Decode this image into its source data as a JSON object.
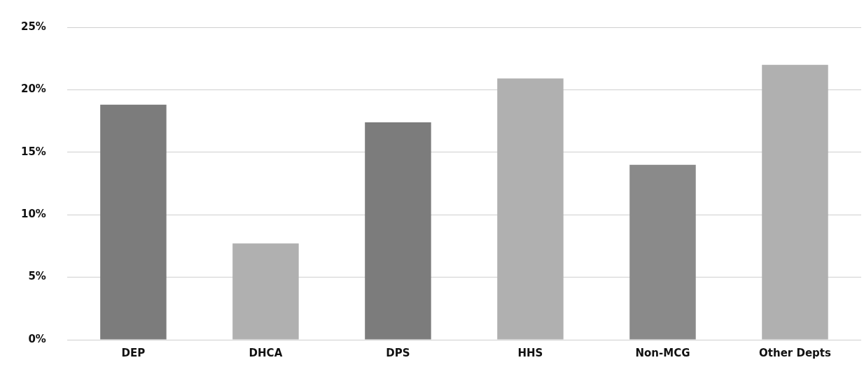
{
  "chart_data": {
    "type": "bar",
    "categories": [
      "DEP",
      "DHCA",
      "DPS",
      "HHS",
      "Non-MCG",
      "Other Depts"
    ],
    "values": [
      18.8,
      7.7,
      17.4,
      20.9,
      14.0,
      22.0
    ],
    "colors": [
      "#7c7c7c",
      "#b0b0b0",
      "#7c7c7c",
      "#b0b0b0",
      "#8a8a8a",
      "#b0b0b0"
    ],
    "ylim": [
      0,
      25
    ],
    "yticks": [
      {
        "value": 0,
        "label": "0%"
      },
      {
        "value": 5,
        "label": "5%"
      },
      {
        "value": 10,
        "label": "10%"
      },
      {
        "value": 15,
        "label": "15%"
      },
      {
        "value": 20,
        "label": "20%"
      },
      {
        "value": 25,
        "label": "25%"
      }
    ],
    "grid": "y"
  }
}
